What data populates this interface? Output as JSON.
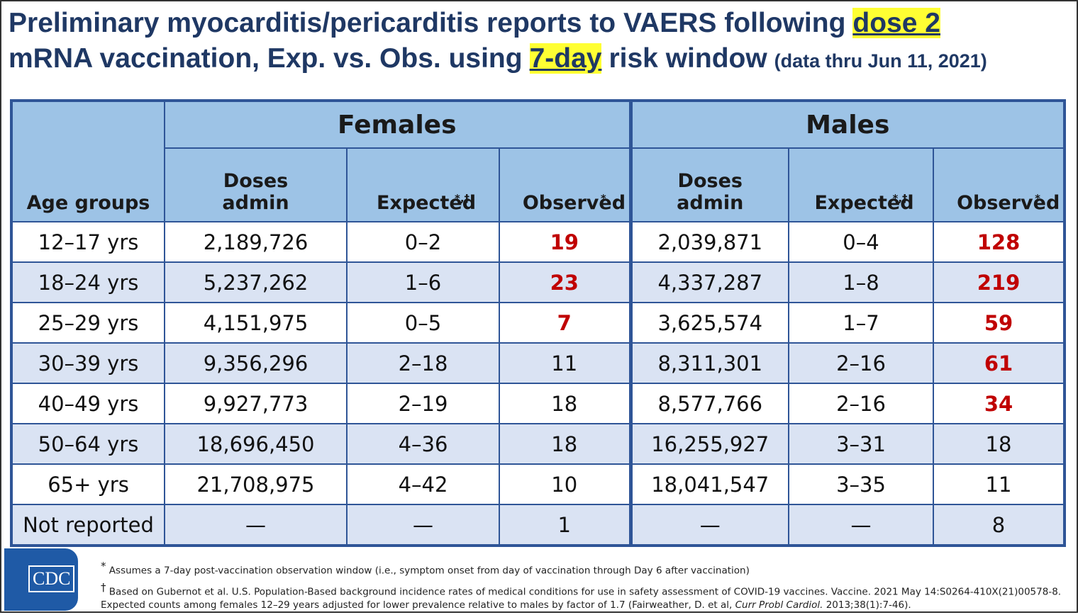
{
  "title": {
    "line1": "Preliminary myocarditis/pericarditis reports to VAERS following",
    "highlight1": "dose 2",
    "line2": "mRNA vaccination, Exp. vs. Obs. using",
    "highlight2": "7-day",
    "line2_end": "risk window",
    "note": "(data thru Jun 11, 2021)"
  },
  "table": {
    "age_header": "Age groups",
    "groups": [
      "Females",
      "Males"
    ],
    "columns": [
      {
        "label": "Doses admin"
      },
      {
        "label": "Expected",
        "sup": "*,†"
      },
      {
        "label": "Observed",
        "sup": "*"
      }
    ],
    "observed_highlight_color": "#c00000",
    "rows": [
      {
        "age": "12–17 yrs",
        "female": [
          "2,189,726",
          "0–2",
          "19"
        ],
        "male": [
          "2,039,871",
          "0–4",
          "128"
        ],
        "red": [
          true,
          true
        ]
      },
      {
        "age": "18–24 yrs",
        "female": [
          "5,237,262",
          "1–6",
          "23"
        ],
        "male": [
          "4,337,287",
          "1–8",
          "219"
        ],
        "red": [
          true,
          true
        ]
      },
      {
        "age": "25–29 yrs",
        "female": [
          "4,151,975",
          "0–5",
          "7"
        ],
        "male": [
          "3,625,574",
          "1–7",
          "59"
        ],
        "red": [
          true,
          true
        ]
      },
      {
        "age": "30–39 yrs",
        "female": [
          "9,356,296",
          "2–18",
          "11"
        ],
        "male": [
          "8,311,301",
          "2–16",
          "61"
        ],
        "red": [
          false,
          true
        ]
      },
      {
        "age": "40–49 yrs",
        "female": [
          "9,927,773",
          "2–19",
          "18"
        ],
        "male": [
          "8,577,766",
          "2–16",
          "34"
        ],
        "red": [
          false,
          true
        ]
      },
      {
        "age": "50–64 yrs",
        "female": [
          "18,696,450",
          "4–36",
          "18"
        ],
        "male": [
          "16,255,927",
          "3–31",
          "18"
        ],
        "red": [
          false,
          false
        ]
      },
      {
        "age": "65+ yrs",
        "female": [
          "21,708,975",
          "4–42",
          "10"
        ],
        "male": [
          "18,041,547",
          "3–35",
          "11"
        ],
        "red": [
          false,
          false
        ]
      },
      {
        "age": "Not reported",
        "female": [
          "—",
          "—",
          "1"
        ],
        "male": [
          "—",
          "—",
          "8"
        ],
        "red": [
          false,
          false
        ]
      }
    ]
  },
  "logo": "CDC",
  "footnotes": [
    {
      "mark": "*",
      "text": "Assumes a 7-day post-vaccination observation window (i.e., symptom onset from day of vaccination through Day 6 after vaccination)"
    },
    {
      "mark": "†",
      "text": "Based on Gubernot et al. U.S. Population-Based background incidence rates of medical conditions for use in safety assessment of COVID-19 vaccines. Vaccine. 2021 May 14:S0264-410X(21)00578-8. Expected counts among females 12–29 years adjusted for lower prevalence relative to males by factor of 1.7 (Fairweather, D. et al,",
      "italic": "Curr Probl Cardiol.",
      "end": "2013;38(1):7-46)."
    }
  ]
}
